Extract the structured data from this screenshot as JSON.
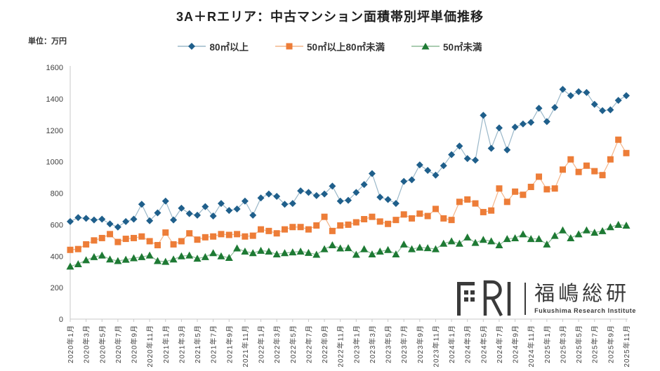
{
  "title": "3A＋Rエリア：中古マンション面積帯別坪単価推移",
  "unit_label": "単位：万円",
  "logo": {
    "mark": "FRI",
    "jp": "福嶋総研",
    "en": "Fukushima Research Institute"
  },
  "chart_data": {
    "type": "line",
    "x_interval": "monthly",
    "x_start": "2020年1月",
    "x_end": "2025年11月",
    "x_tick_labels": [
      "2020年1月",
      "2020年3月",
      "2020年5月",
      "2020年7月",
      "2020年9月",
      "2020年11月",
      "2021年1月",
      "2021年3月",
      "2021年5月",
      "2021年7月",
      "2021年9月",
      "2021年11月",
      "2022年1月",
      "2022年3月",
      "2022年5月",
      "2022年7月",
      "2022年9月",
      "2022年11月",
      "2023年1月",
      "2023年3月",
      "2023年5月",
      "2023年7月",
      "2023年9月",
      "2023年11月",
      "2024年1月",
      "2024年3月",
      "2024年5月",
      "2024年7月",
      "2024年9月",
      "2024年11月",
      "2025年1月",
      "2025年3月",
      "2025年5月",
      "2025年7月",
      "2025年9月",
      "2025年11月"
    ],
    "ylabel": "万円",
    "ylim": [
      0,
      1600
    ],
    "y_ticks": [
      0,
      200,
      400,
      600,
      800,
      1000,
      1200,
      1400,
      1600
    ],
    "grid": false,
    "legend_position": "top",
    "series": [
      {
        "name": "80㎡以上",
        "marker": "diamond",
        "color": "#1f5f8b",
        "line_color": "#9bb8c9",
        "values": [
          620,
          645,
          640,
          630,
          635,
          605,
          585,
          620,
          635,
          730,
          625,
          675,
          750,
          630,
          705,
          670,
          660,
          715,
          655,
          735,
          690,
          700,
          750,
          660,
          770,
          795,
          780,
          730,
          735,
          815,
          805,
          785,
          795,
          845,
          750,
          755,
          805,
          855,
          925,
          775,
          760,
          735,
          875,
          885,
          980,
          945,
          915,
          975,
          1045,
          1100,
          1020,
          1010,
          1295,
          1085,
          1215,
          1075,
          1220,
          1240,
          1250,
          1340,
          1255,
          1345,
          1460,
          1420,
          1445,
          1440,
          1365,
          1325,
          1330,
          1390,
          1420
        ]
      },
      {
        "name": "50㎡以上80㎡未満",
        "marker": "square",
        "color": "#ed7d38",
        "line_color": "#f4b58a",
        "values": [
          440,
          445,
          475,
          500,
          515,
          540,
          490,
          510,
          515,
          525,
          495,
          470,
          550,
          475,
          495,
          545,
          505,
          520,
          525,
          540,
          535,
          540,
          525,
          530,
          570,
          560,
          545,
          570,
          585,
          585,
          570,
          595,
          650,
          560,
          595,
          600,
          615,
          635,
          650,
          620,
          605,
          630,
          665,
          640,
          670,
          655,
          700,
          640,
          630,
          745,
          760,
          735,
          680,
          690,
          830,
          745,
          810,
          790,
          840,
          905,
          825,
          830,
          950,
          1015,
          935,
          975,
          940,
          915,
          1015,
          1140,
          1055
        ]
      },
      {
        "name": "50㎡未満",
        "marker": "triangle",
        "color": "#1e7a34",
        "line_color": "#8dbc97",
        "values": [
          335,
          350,
          375,
          395,
          405,
          380,
          370,
          378,
          388,
          395,
          405,
          370,
          365,
          380,
          400,
          405,
          385,
          395,
          420,
          400,
          390,
          450,
          430,
          420,
          435,
          430,
          412,
          420,
          425,
          430,
          422,
          410,
          445,
          470,
          450,
          452,
          410,
          445,
          412,
          430,
          440,
          412,
          475,
          445,
          455,
          452,
          445,
          480,
          495,
          480,
          520,
          485,
          505,
          495,
          470,
          510,
          515,
          540,
          510,
          510,
          475,
          530,
          565,
          515,
          540,
          565,
          550,
          560,
          585,
          600,
          595
        ]
      }
    ]
  }
}
